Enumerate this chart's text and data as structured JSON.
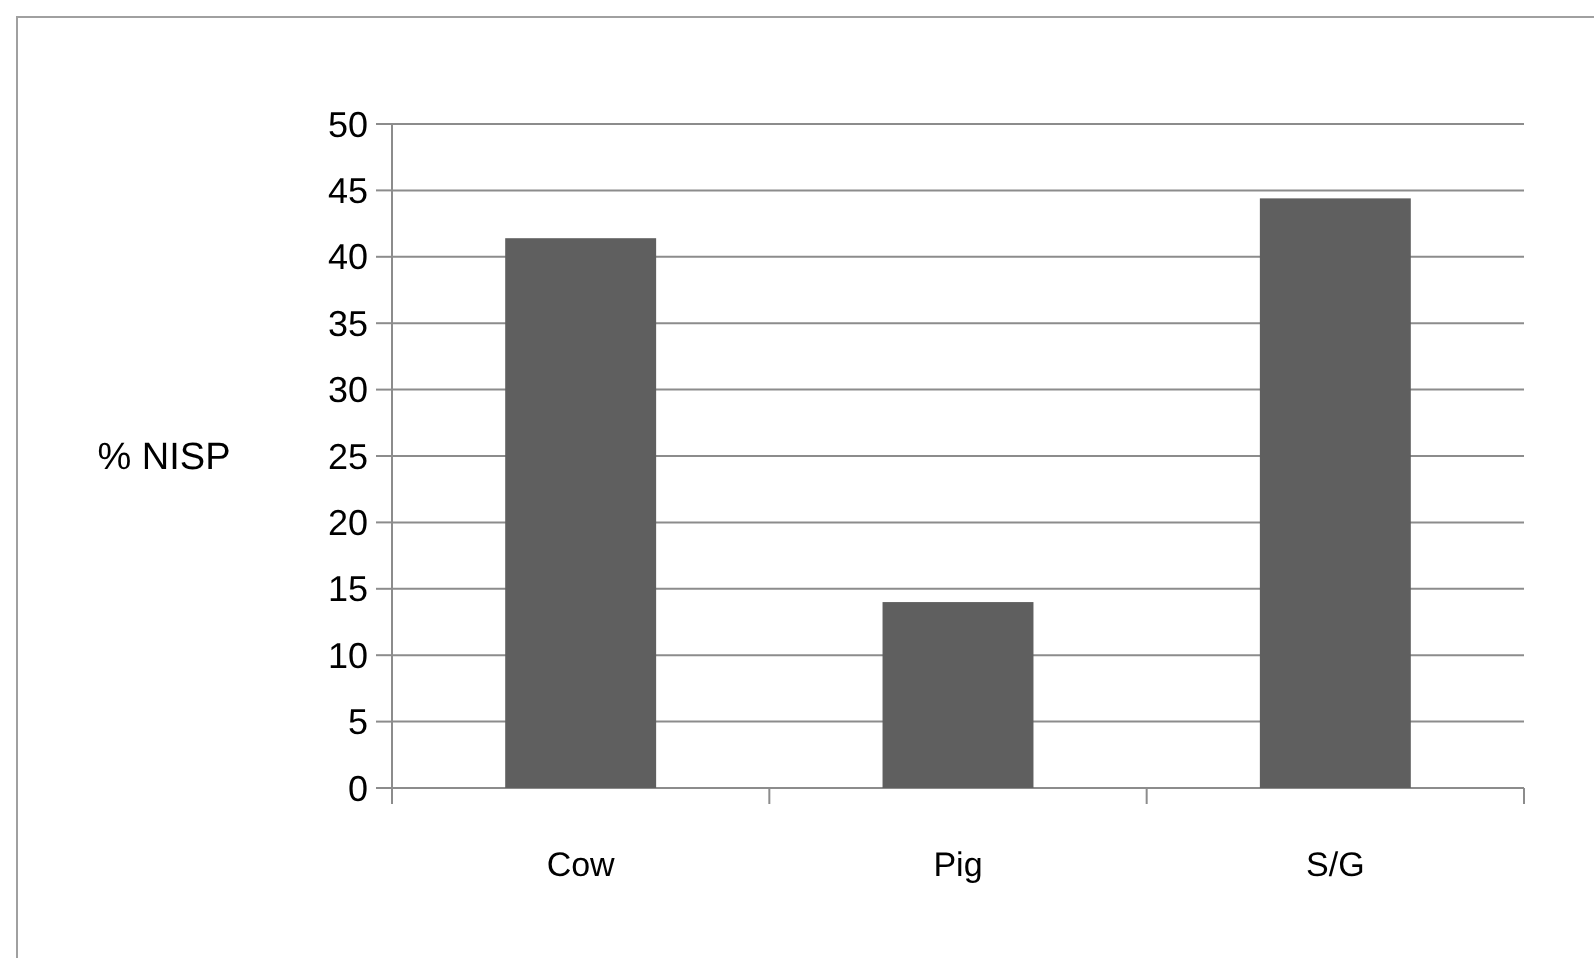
{
  "chart_data": {
    "type": "bar",
    "ylabel": "% NISP",
    "categories": [
      "Cow",
      "Pig",
      "S/G"
    ],
    "values": [
      41.4,
      14.0,
      44.4
    ],
    "color": "#5f5f5f",
    "ylim": [
      0,
      50
    ],
    "yticks": [
      0,
      5,
      10,
      15,
      20,
      25,
      30,
      35,
      40,
      45,
      50
    ],
    "grid": "y"
  }
}
